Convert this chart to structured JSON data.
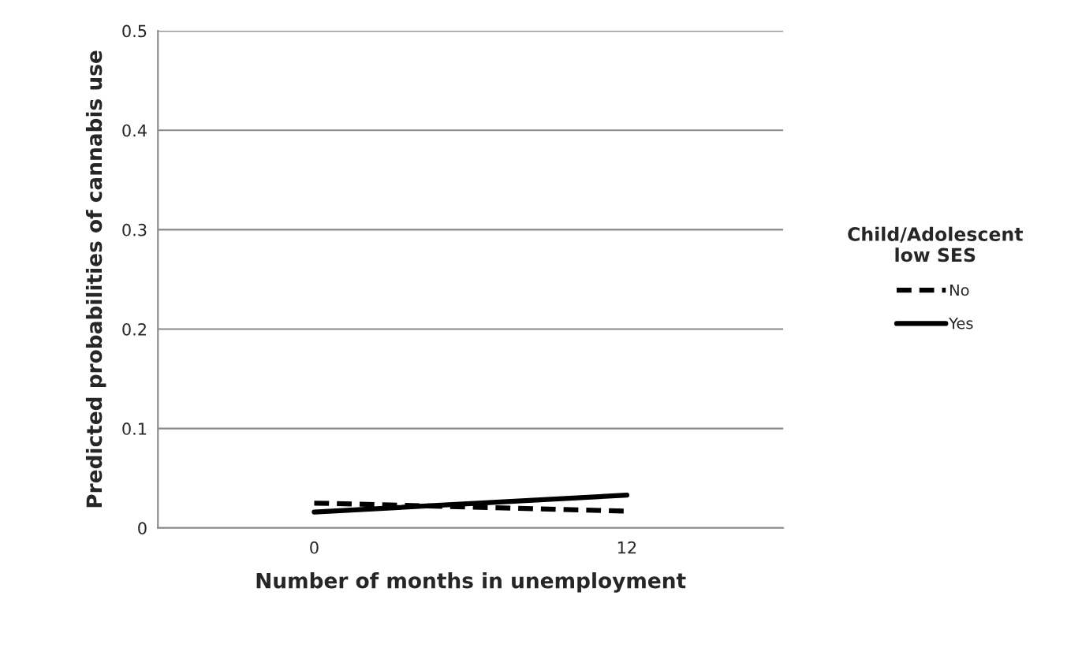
{
  "chart_data": {
    "type": "line",
    "xlabel": "Number of months in unemployment",
    "ylabel": "Predicted probabilities of cannabis use",
    "legend_title": "Child/Adolescent\nlow SES",
    "categories": [
      "0",
      "12"
    ],
    "series": [
      {
        "name": "No",
        "color": "#000000",
        "values": [
          0.025,
          0.017
        ],
        "line_style": "dashed"
      },
      {
        "name": "Yes",
        "color": "#000000",
        "values": [
          0.016,
          0.033
        ],
        "line_style": "solid"
      }
    ],
    "ylim": [
      0,
      0.5
    ],
    "yticks": [
      {
        "value": 0,
        "label": "0"
      },
      0.1,
      0.2,
      0.3,
      0.4,
      0.5
    ],
    "grid": "y",
    "legend": "right",
    "marker": "none"
  }
}
